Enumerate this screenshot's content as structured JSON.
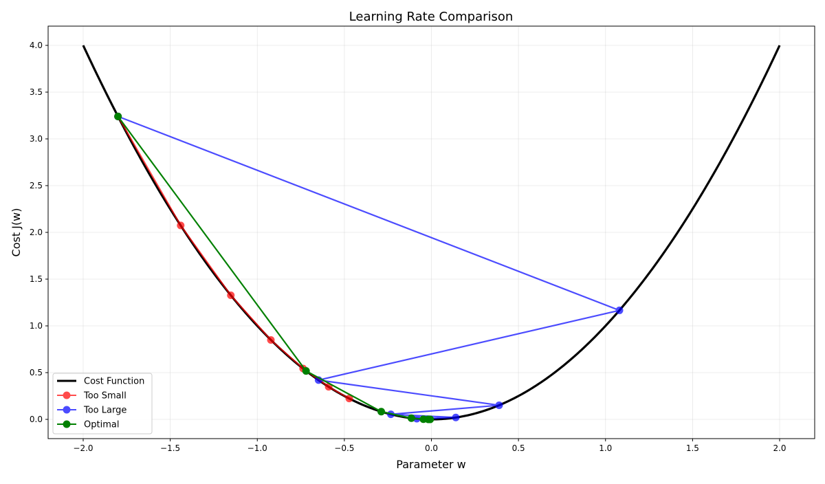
{
  "chart_data": {
    "type": "line",
    "title": "Learning Rate Comparison",
    "xlabel": "Parameter w",
    "ylabel": "Cost J(w)",
    "xlim": [
      -2.2,
      2.2
    ],
    "ylim": [
      -0.2,
      4.2
    ],
    "xticks": [
      -2.0,
      -1.5,
      -1.0,
      -0.5,
      0.0,
      0.5,
      1.0,
      1.5,
      2.0
    ],
    "xtick_labels": [
      "−2.0",
      "−1.5",
      "−1.0",
      "−0.5",
      "0.0",
      "0.5",
      "1.0",
      "1.5",
      "2.0"
    ],
    "yticks": [
      0.0,
      0.5,
      1.0,
      1.5,
      2.0,
      2.5,
      3.0,
      3.5,
      4.0
    ],
    "ytick_labels": [
      "0.0",
      "0.5",
      "1.0",
      "1.5",
      "2.0",
      "2.5",
      "3.0",
      "3.5",
      "4.0"
    ],
    "grid": true,
    "legend_position": "lower-left",
    "cost_function": {
      "name": "Cost Function",
      "expression": "w^2",
      "x_range": [
        -2.0,
        2.0
      ],
      "color": "#000000"
    },
    "series": [
      {
        "name": "Too Small",
        "color": "#ff0000",
        "alpha": 0.7,
        "x": [
          -1.8,
          -1.44,
          -1.152,
          -0.922,
          -0.737,
          -0.59,
          -0.472
        ],
        "y": [
          3.24,
          2.074,
          1.327,
          0.849,
          0.544,
          0.348,
          0.223
        ]
      },
      {
        "name": "Too Large",
        "color": "#0000ff",
        "alpha": 0.7,
        "x": [
          -1.8,
          1.08,
          -0.648,
          0.389,
          -0.233,
          0.14,
          -0.084
        ],
        "y": [
          3.24,
          1.166,
          0.42,
          0.151,
          0.054,
          0.02,
          0.007
        ]
      },
      {
        "name": "Optimal",
        "color": "#008000",
        "alpha": 1.0,
        "x": [
          -1.8,
          -0.72,
          -0.288,
          -0.115,
          -0.046,
          -0.018,
          -0.007
        ],
        "y": [
          3.24,
          0.518,
          0.083,
          0.013,
          0.002,
          0.0003,
          5e-05
        ]
      }
    ]
  }
}
